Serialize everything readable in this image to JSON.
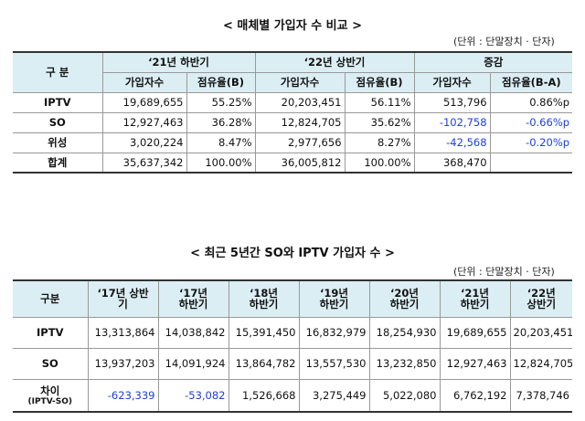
{
  "section1": {
    "title": "< 매체별 가입자 수 비교 >",
    "unit": "(단위 : 단말장치 · 단자)",
    "header": {
      "category": "구  분",
      "groups": [
        "‘21년 하반기",
        "‘22년 상반기",
        "증감"
      ],
      "subs": [
        "가입자수",
        "점유율(B)",
        "가입자수",
        "점유율(B)",
        "가입자수",
        "점유율(B-A)"
      ]
    },
    "rows": [
      {
        "label": "IPTV",
        "cells": [
          "19,689,655",
          "55.25%",
          "20,203,451",
          "56.11%",
          "513,796",
          "0.86%p"
        ]
      },
      {
        "label": "SO",
        "cells": [
          "12,927,463",
          "36.28%",
          "12,824,705",
          "35.62%",
          "-102,758",
          "-0.66%p"
        ]
      },
      {
        "label": "위성",
        "cells": [
          "3,020,224",
          "8.47%",
          "2,977,656",
          "8.27%",
          "-42,568",
          "-0.20%p"
        ]
      },
      {
        "label": "합계",
        "cells": [
          "35,637,342",
          "100.00%",
          "36,005,812",
          "100.00%",
          "368,470",
          ""
        ]
      }
    ]
  },
  "section2": {
    "title": "< 최근 5년간 SO와 IPTV 가입자 수 >",
    "unit": "(단위 : 단말장치 · 단자)",
    "header": {
      "category": "구분",
      "cols": [
        {
          "line1": "‘17년 상반",
          "line2": "기"
        },
        {
          "line1": "‘17년",
          "line2": "하반기"
        },
        {
          "line1": "‘18년",
          "line2": "하반기"
        },
        {
          "line1": "‘19년",
          "line2": "하반기"
        },
        {
          "line1": "‘20년",
          "line2": "하반기"
        },
        {
          "line1": "‘21년",
          "line2": "하반기"
        },
        {
          "line1": "‘22년",
          "line2": "상반기"
        }
      ]
    },
    "rows": [
      {
        "label": "IPTV",
        "cells": [
          "13,313,864",
          "14,038,842",
          "15,391,450",
          "16,832,979",
          "18,254,930",
          "19,689,655",
          "20,203,451"
        ]
      },
      {
        "label": "SO",
        "cells": [
          "13,937,203",
          "14,091,924",
          "13,864,782",
          "13,557,530",
          "13,232,850",
          "12,927,463",
          "12,824,705"
        ]
      },
      {
        "label": "차이",
        "sublabel": "(IPTV-SO)",
        "cells": [
          "-623,339",
          "-53,082",
          "1,526,668",
          "3,275,449",
          "5,022,080",
          "6,762,192",
          "7,378,746"
        ]
      }
    ]
  },
  "colors": {
    "header_bg": "#dbeef4",
    "negative": "#1f3fd6"
  }
}
